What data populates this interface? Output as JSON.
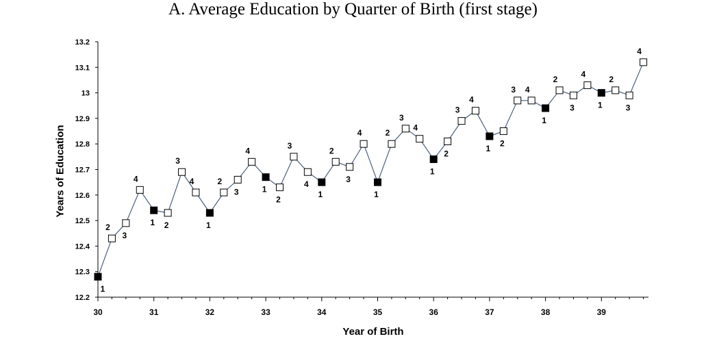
{
  "chart_data": {
    "type": "line",
    "title": "A. Average Education by Quarter of Birth (first stage)",
    "xlabel": "Year of Birth",
    "ylabel": "Years of Education",
    "xlim": [
      30,
      39.75
    ],
    "ylim": [
      12.2,
      13.2
    ],
    "x_ticks": [
      "30",
      "31",
      "32",
      "33",
      "34",
      "35",
      "36",
      "37",
      "38",
      "39"
    ],
    "y_ticks": [
      "12.2",
      "12.3",
      "12.4",
      "12.5",
      "12.6",
      "12.7",
      "12.8",
      "12.9",
      "13",
      "13.1",
      "13.2"
    ],
    "grid": false,
    "legend": "none",
    "colors": {
      "line": "#4a5f80",
      "filled_marker": "#000000",
      "open_marker": "#ffffff"
    },
    "series": [
      {
        "points": [
          {
            "x": 30.0,
            "y": 12.28,
            "quarter": "1"
          },
          {
            "x": 30.25,
            "y": 12.43,
            "quarter": "2"
          },
          {
            "x": 30.5,
            "y": 12.49,
            "quarter": "3"
          },
          {
            "x": 30.75,
            "y": 12.62,
            "quarter": "4"
          },
          {
            "x": 31.0,
            "y": 12.54,
            "quarter": "1"
          },
          {
            "x": 31.25,
            "y": 12.53,
            "quarter": "2"
          },
          {
            "x": 31.5,
            "y": 12.69,
            "quarter": "3"
          },
          {
            "x": 31.75,
            "y": 12.61,
            "quarter": "4"
          },
          {
            "x": 32.0,
            "y": 12.53,
            "quarter": "1"
          },
          {
            "x": 32.25,
            "y": 12.61,
            "quarter": "2"
          },
          {
            "x": 32.5,
            "y": 12.66,
            "quarter": "3"
          },
          {
            "x": 32.75,
            "y": 12.73,
            "quarter": "4"
          },
          {
            "x": 33.0,
            "y": 12.67,
            "quarter": "1"
          },
          {
            "x": 33.25,
            "y": 12.63,
            "quarter": "2"
          },
          {
            "x": 33.5,
            "y": 12.75,
            "quarter": "3"
          },
          {
            "x": 33.75,
            "y": 12.69,
            "quarter": "4"
          },
          {
            "x": 34.0,
            "y": 12.65,
            "quarter": "1"
          },
          {
            "x": 34.25,
            "y": 12.73,
            "quarter": "2"
          },
          {
            "x": 34.5,
            "y": 12.71,
            "quarter": "3"
          },
          {
            "x": 34.75,
            "y": 12.8,
            "quarter": "4"
          },
          {
            "x": 35.0,
            "y": 12.65,
            "quarter": "1"
          },
          {
            "x": 35.25,
            "y": 12.8,
            "quarter": "2"
          },
          {
            "x": 35.5,
            "y": 12.86,
            "quarter": "3"
          },
          {
            "x": 35.75,
            "y": 12.82,
            "quarter": "4"
          },
          {
            "x": 36.0,
            "y": 12.74,
            "quarter": "1"
          },
          {
            "x": 36.25,
            "y": 12.81,
            "quarter": "2"
          },
          {
            "x": 36.5,
            "y": 12.89,
            "quarter": "3"
          },
          {
            "x": 36.75,
            "y": 12.93,
            "quarter": "4"
          },
          {
            "x": 37.0,
            "y": 12.83,
            "quarter": "1"
          },
          {
            "x": 37.25,
            "y": 12.85,
            "quarter": "2"
          },
          {
            "x": 37.5,
            "y": 12.97,
            "quarter": "3"
          },
          {
            "x": 37.75,
            "y": 12.97,
            "quarter": "4"
          },
          {
            "x": 38.0,
            "y": 12.94,
            "quarter": "1"
          },
          {
            "x": 38.25,
            "y": 13.01,
            "quarter": "2"
          },
          {
            "x": 38.5,
            "y": 12.99,
            "quarter": "3"
          },
          {
            "x": 38.75,
            "y": 13.03,
            "quarter": "4"
          },
          {
            "x": 39.0,
            "y": 13.0,
            "quarter": "1"
          },
          {
            "x": 39.25,
            "y": 13.01,
            "quarter": "2"
          },
          {
            "x": 39.5,
            "y": 12.99,
            "quarter": "3"
          },
          {
            "x": 39.75,
            "y": 13.12,
            "quarter": "4"
          }
        ]
      }
    ]
  }
}
